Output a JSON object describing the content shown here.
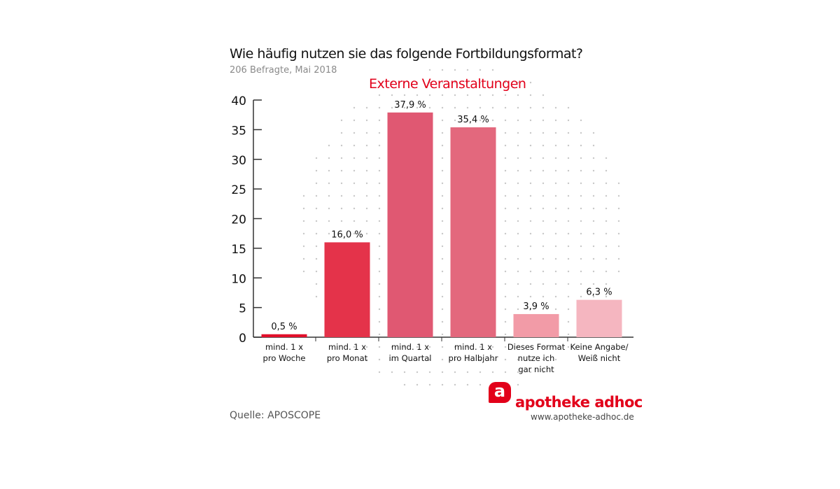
{
  "chart_data": {
    "type": "bar",
    "title": "Wie häufig nutzen sie das folgende Fortbildungsformat?",
    "subtitle": "206 Befragte, Mai 2018",
    "series_title": "Externe Veranstaltungen",
    "categories": [
      [
        "mind. 1 x",
        "pro Woche"
      ],
      [
        "mind. 1 x",
        "pro Monat"
      ],
      [
        "mind. 1 x",
        "im Quartal"
      ],
      [
        "mind. 1 x",
        "pro Halbjahr"
      ],
      [
        "Dieses Format",
        "nutze ich",
        "gar nicht"
      ],
      [
        "Keine Angabe/",
        "Weiß nicht"
      ]
    ],
    "values": [
      0.5,
      16.0,
      37.9,
      35.4,
      3.9,
      6.3
    ],
    "value_labels": [
      "0,5 %",
      "16,0 %",
      "37,9 %",
      "35,4 %",
      "3,9 %",
      "6,3 %"
    ],
    "colors": [
      "#e2102b",
      "#e4334a",
      "#e05872",
      "#e3687d",
      "#f29ba7",
      "#f5b6c0"
    ],
    "ylim": [
      0,
      40
    ],
    "yticks": [
      0,
      5,
      10,
      15,
      20,
      25,
      30,
      35,
      40
    ],
    "xlabel": "",
    "ylabel": "",
    "grid": false
  },
  "source": "Quelle: APOSCOPE",
  "brand": {
    "logo_letter": "a",
    "name": "apotheke adhoc",
    "url": "www.apotheke-adhoc.de",
    "color": "#e2001a"
  }
}
